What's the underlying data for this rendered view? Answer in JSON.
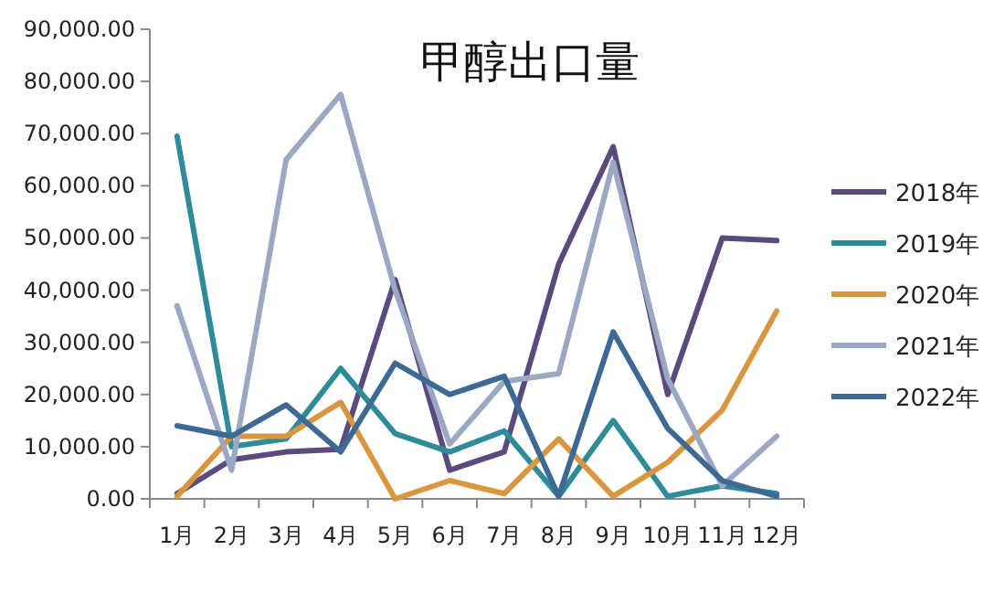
{
  "chart_data": {
    "type": "line",
    "title": "甲醇出口量",
    "categories": [
      "1月",
      "2月",
      "3月",
      "4月",
      "5月",
      "6月",
      "7月",
      "8月",
      "9月",
      "10月",
      "11月",
      "12月"
    ],
    "series": [
      {
        "name": "2018年",
        "color": "#5a4a7e",
        "values": [
          1000,
          7500,
          9000,
          9500,
          42000,
          5500,
          9000,
          45000,
          67500,
          20000,
          50000,
          49500
        ]
      },
      {
        "name": "2019年",
        "color": "#2e8b9a",
        "values": [
          69500,
          10000,
          11500,
          25000,
          12500,
          9000,
          13000,
          500,
          15000,
          500,
          2500,
          1000
        ]
      },
      {
        "name": "2020年",
        "color": "#d9963f",
        "values": [
          500,
          12000,
          12000,
          18500,
          0,
          3500,
          1000,
          11500,
          500,
          7000,
          17000,
          36000
        ]
      },
      {
        "name": "2021年",
        "color": "#9aa8c4",
        "values": [
          37000,
          5500,
          65000,
          77500,
          40000,
          10500,
          22500,
          24000,
          64500,
          23000,
          2500,
          12000
        ]
      },
      {
        "name": "2022年",
        "color": "#3c6a94",
        "values": [
          14000,
          12000,
          18000,
          9000,
          26000,
          20000,
          23500,
          500,
          32000,
          13500,
          3500,
          500
        ]
      }
    ],
    "ylim": [
      0,
      90000
    ],
    "yticks": [
      {
        "value": 0,
        "label": "0.00"
      },
      {
        "value": 10000,
        "label": "10,000.00"
      },
      {
        "value": 20000,
        "label": "20,000.00"
      },
      {
        "value": 30000,
        "label": "30,000.00"
      },
      {
        "value": 40000,
        "label": "40,000.00"
      },
      {
        "value": 50000,
        "label": "50,000.00"
      },
      {
        "value": 60000,
        "label": "60,000.00"
      },
      {
        "value": 70000,
        "label": "70,000.00"
      },
      {
        "value": 80000,
        "label": "80,000.00"
      },
      {
        "value": 90000,
        "label": "90,000.00"
      }
    ],
    "grid": false,
    "legend": "right",
    "marker": "none",
    "line_style": "solid"
  }
}
